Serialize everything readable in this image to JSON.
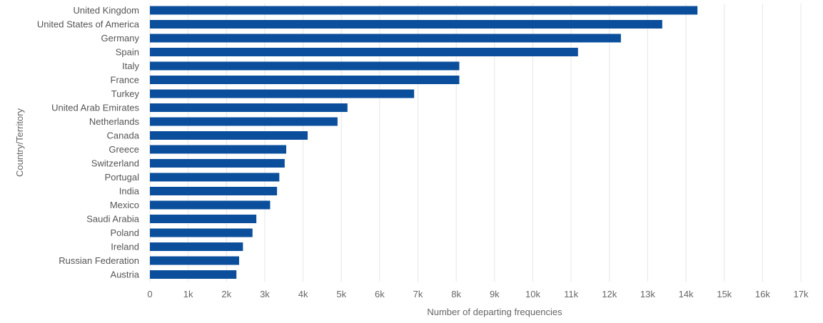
{
  "chart_data": {
    "type": "bar",
    "orientation": "horizontal",
    "title": "",
    "xlabel": "Number of departing frequencies",
    "ylabel": "Country/Territory",
    "xlim": [
      0,
      17000
    ],
    "x_ticks": [
      "0",
      "1k",
      "2k",
      "3k",
      "4k",
      "5k",
      "6k",
      "7k",
      "8k",
      "9k",
      "10k",
      "11k",
      "12k",
      "13k",
      "14k",
      "15k",
      "16k",
      "17k"
    ],
    "grid": "vertical",
    "bar_color": "#0b4f9c",
    "categories": [
      "United Kingdom",
      "United States of America",
      "Germany",
      "Spain",
      "Italy",
      "France",
      "Turkey",
      "United Arab Emirates",
      "Netherlands",
      "Canada",
      "Greece",
      "Switzerland",
      "Portugal",
      "India",
      "Mexico",
      "Saudi Arabia",
      "Poland",
      "Ireland",
      "Russian Federation",
      "Austria"
    ],
    "values": [
      14300,
      13380,
      12300,
      11180,
      8080,
      8080,
      6900,
      5160,
      4900,
      4120,
      3560,
      3520,
      3380,
      3320,
      3140,
      2780,
      2680,
      2430,
      2330,
      2260
    ]
  }
}
